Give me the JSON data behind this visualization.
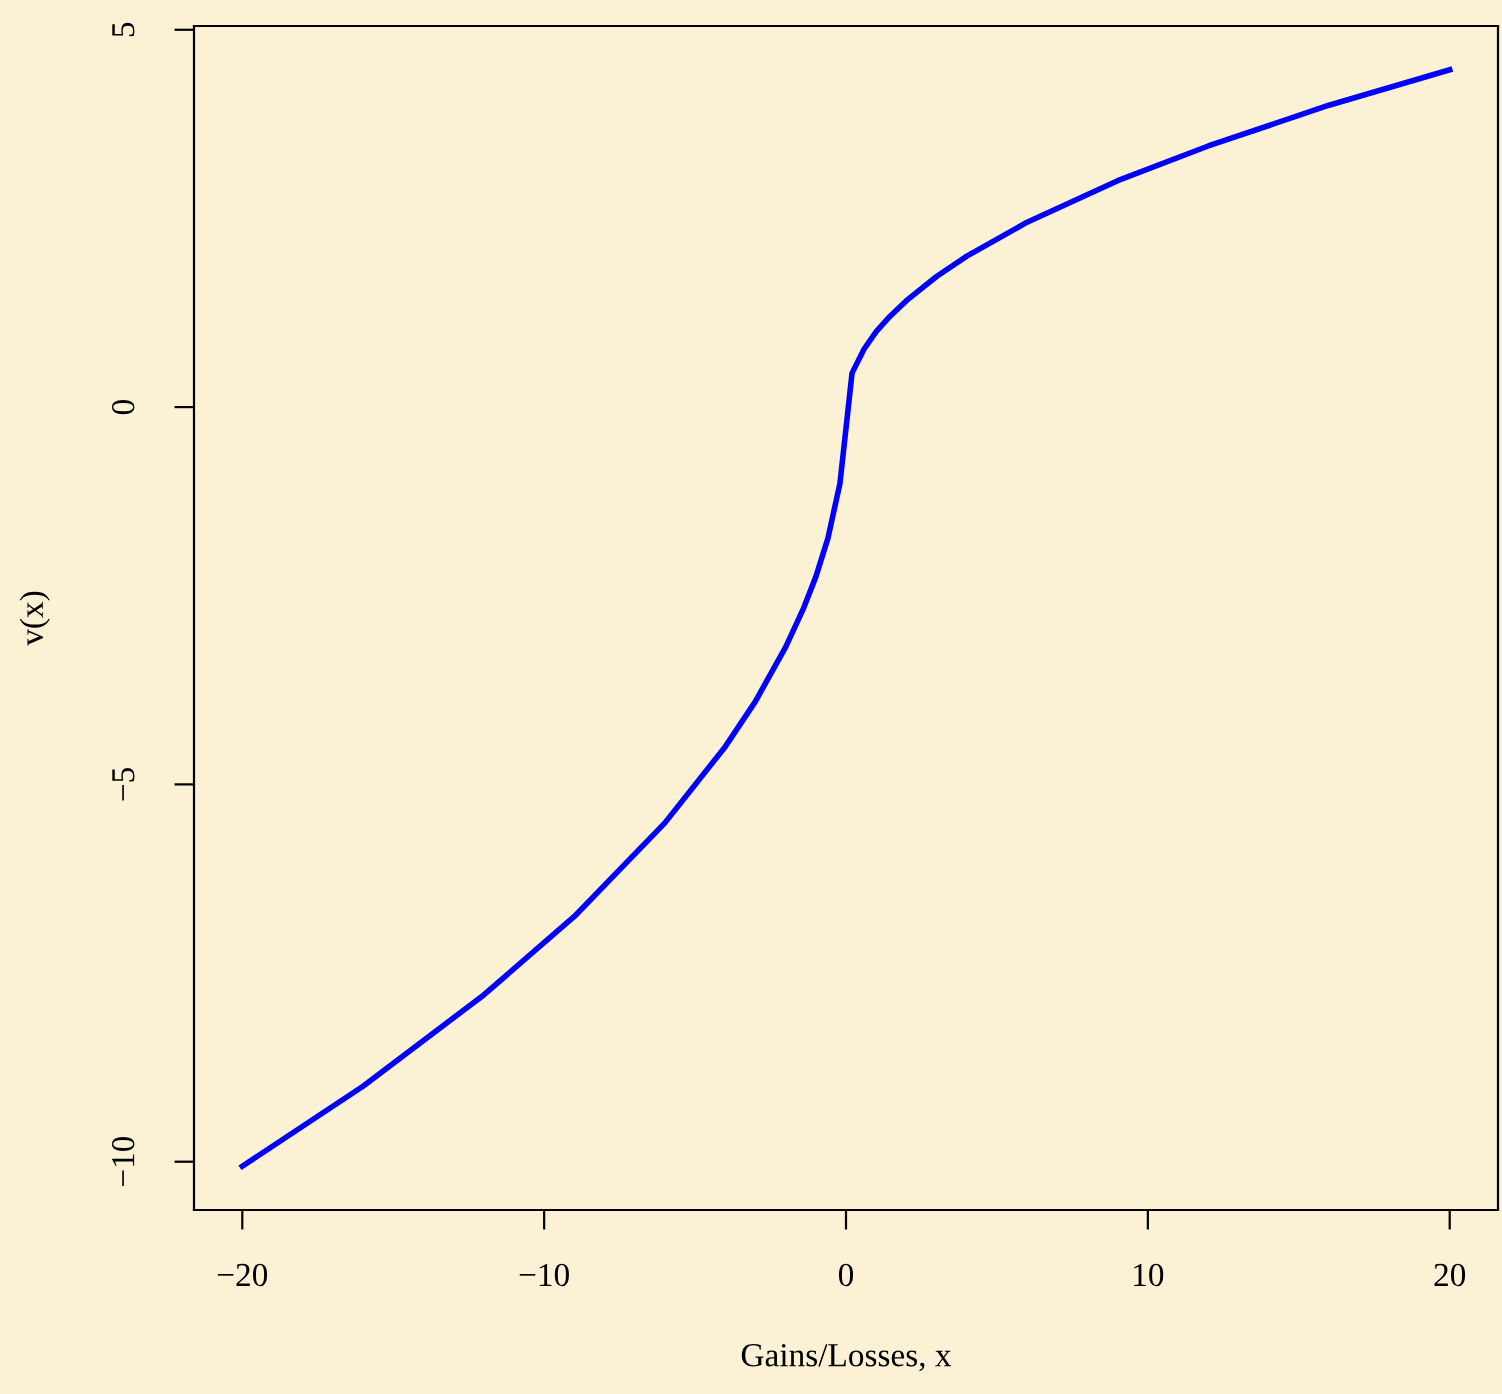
{
  "chart_data": {
    "type": "line",
    "xlabel": "Gains/Losses, x",
    "ylabel": "v(x)",
    "x": [
      -20,
      -16,
      -12,
      -9,
      -6,
      -4,
      -3,
      -2,
      -1.4,
      -1,
      -0.6,
      -0.2,
      0.2,
      0.6,
      1,
      1.4,
      2,
      3,
      4,
      6,
      9,
      12,
      16,
      20
    ],
    "series": [
      {
        "color": "#0000ff",
        "values": [
          -10.06,
          -9.0,
          -7.79,
          -6.75,
          -5.51,
          -4.5,
          -3.9,
          -3.18,
          -2.66,
          -2.25,
          -1.74,
          -1.01,
          0.45,
          0.77,
          1.0,
          1.18,
          1.41,
          1.73,
          2.0,
          2.45,
          3.0,
          3.46,
          4.0,
          4.47
        ]
      }
    ],
    "xlim": [
      -21.6,
      21.6
    ],
    "ylim": [
      -10.64,
      5.05
    ],
    "xticks": [
      {
        "value": -20,
        "label": "−20"
      },
      {
        "value": -10,
        "label": "−10"
      },
      0,
      10,
      20
    ],
    "yticks": [
      {
        "value": -10,
        "label": "−10"
      },
      {
        "value": -5,
        "label": "−5"
      },
      0,
      5
    ],
    "grid": false,
    "legend": false,
    "marker": "none",
    "line_style": "solid"
  }
}
